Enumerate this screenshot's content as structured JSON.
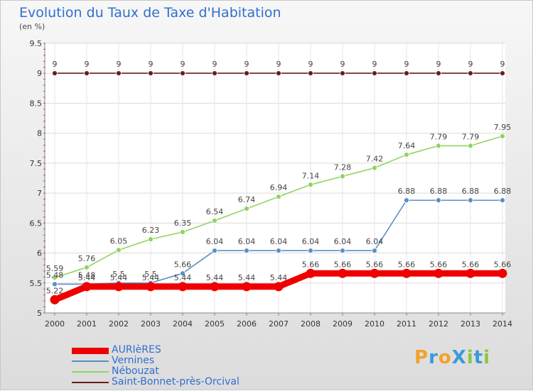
{
  "header": {
    "title": "Evolution du Taux de Taxe d'Habitation",
    "unit": "(en %)"
  },
  "brand": {
    "text": "ProXiti",
    "letters": [
      {
        "ch": "P",
        "color": "#f2a22b"
      },
      {
        "ch": "r",
        "color": "#3a9ad9"
      },
      {
        "ch": "o",
        "color": "#f2a22b"
      },
      {
        "ch": "X",
        "color": "#3a9ad9"
      },
      {
        "ch": "i",
        "color": "#8cc63f"
      },
      {
        "ch": "t",
        "color": "#3a9ad9"
      },
      {
        "ch": "i",
        "color": "#8cc63f"
      }
    ]
  },
  "chart_data": {
    "type": "line",
    "x": [
      "2000",
      "2001",
      "2002",
      "2003",
      "2004",
      "2005",
      "2006",
      "2007",
      "2008",
      "2009",
      "2010",
      "2011",
      "2012",
      "2013",
      "2014"
    ],
    "ylim": [
      5,
      9.5
    ],
    "yticks": [
      "5",
      "5.5",
      "6",
      "6.5",
      "7",
      "7.5",
      "8",
      "8.5",
      "9",
      "9.5"
    ],
    "ytick_values": [
      5,
      5.5,
      6,
      6.5,
      7,
      7.5,
      8,
      8.5,
      9,
      9.5
    ],
    "grid": true,
    "legend_position": "bottom-left",
    "series": [
      {
        "name": "Saint-Bonnet-près-Orcival",
        "color": "#6b1e1e",
        "values": [
          9,
          9,
          9,
          9,
          9,
          9,
          9,
          9,
          9,
          9,
          9,
          9,
          9,
          9,
          9
        ],
        "labels": [
          "9",
          "9",
          "9",
          "9",
          "9",
          "9",
          "9",
          "9",
          "9",
          "9",
          "9",
          "9",
          "9",
          "9",
          "9"
        ]
      },
      {
        "name": "Nébouzat",
        "color": "#8fd460",
        "values": [
          5.59,
          5.76,
          6.05,
          6.23,
          6.35,
          6.54,
          6.74,
          6.94,
          7.14,
          7.28,
          7.42,
          7.64,
          7.79,
          7.79,
          7.95
        ],
        "labels": [
          "5.59",
          "5.76",
          "6.05",
          "6.23",
          "6.35",
          "6.54",
          "6.74",
          "6.94",
          "7.14",
          "7.28",
          "7.42",
          "7.64",
          "7.79",
          "7.79",
          "7.95"
        ]
      },
      {
        "name": "Vernines",
        "color": "#5b8fc6",
        "values": [
          5.48,
          5.48,
          5.5,
          5.5,
          5.66,
          6.04,
          6.04,
          6.04,
          6.04,
          6.04,
          6.04,
          6.88,
          6.88,
          6.88,
          6.88
        ],
        "labels": [
          "5.48",
          "5.48",
          "5.5",
          "5.5",
          "5.66",
          "6.04",
          "6.04",
          "6.04",
          "6.04",
          "6.04",
          "6.04",
          "6.88",
          "6.88",
          "6.88",
          "6.88"
        ]
      },
      {
        "name": "AURIèRES",
        "color": "#ee0000",
        "values": [
          5.22,
          5.44,
          5.44,
          5.44,
          5.44,
          5.44,
          5.44,
          5.44,
          5.66,
          5.66,
          5.66,
          5.66,
          5.66,
          5.66,
          5.66
        ],
        "labels": [
          "5.22",
          "5.44",
          "5.44",
          "5.44",
          "5.44",
          "5.44",
          "5.44",
          "5.44",
          "5.66",
          "5.66",
          "5.66",
          "5.66",
          "5.66",
          "5.66",
          "5.66"
        ]
      }
    ],
    "legend": [
      "AURIèRES",
      "Vernines",
      "Nébouzat",
      "Saint-Bonnet-près-Orcival"
    ]
  }
}
